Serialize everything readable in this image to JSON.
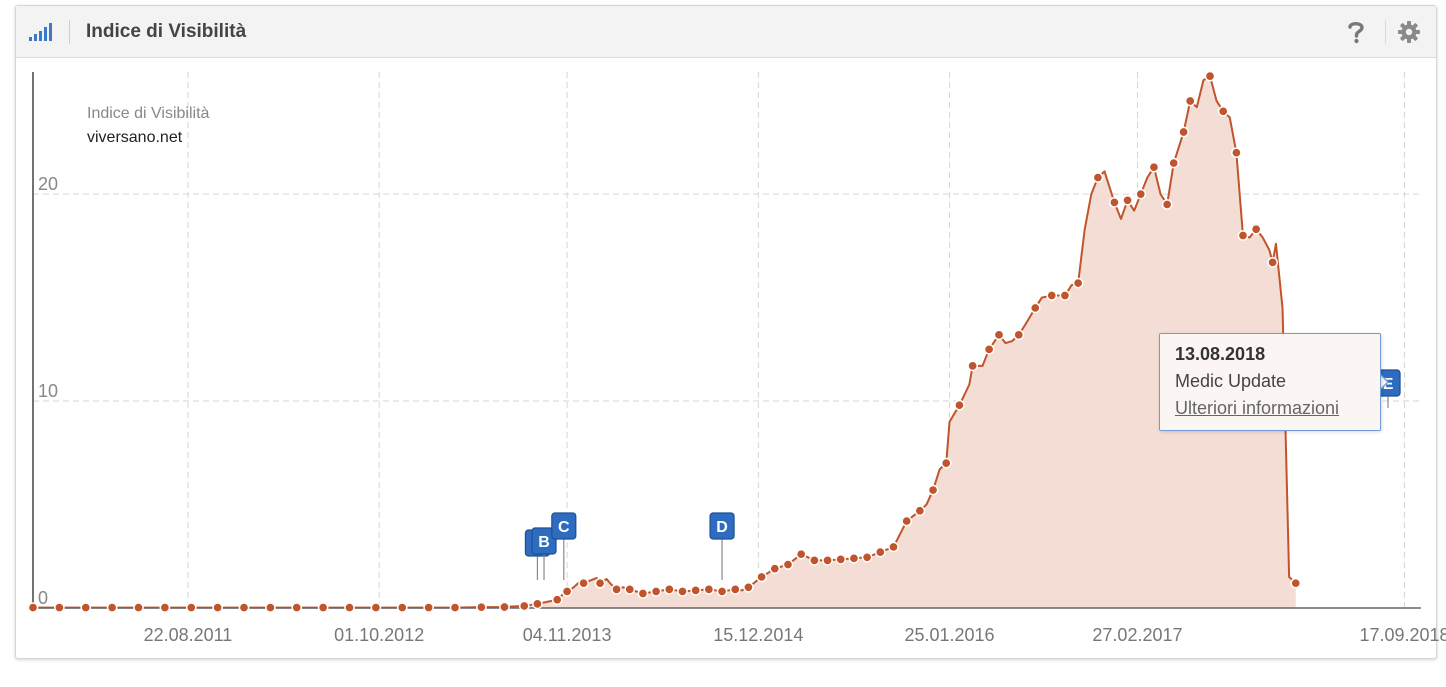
{
  "header": {
    "title": "Indice di Visibilità",
    "icon": "signal-bars-icon",
    "help_icon": "question-mark-icon",
    "settings_icon": "gear-icon",
    "accent": "#3a78c9"
  },
  "tooltip": {
    "date": "13.08.2018",
    "name": "Medic Update",
    "link": "Ulteriori informazioni"
  },
  "chart_data": {
    "type": "area",
    "legend_placement": "top-left",
    "legend": {
      "metric": "Indice di Visibilità",
      "domain": "viversano.net"
    },
    "ylim": [
      0,
      25.9
    ],
    "yticks": [
      0,
      10,
      20
    ],
    "xlim": [
      "2010-09-27",
      "2018-10-22"
    ],
    "xticks": [
      "22.08.2011",
      "01.10.2012",
      "04.11.2013",
      "15.12.2014",
      "25.01.2016",
      "27.02.2017",
      "17.09.2018"
    ],
    "grid": true,
    "colors": {
      "line": "#c0552d",
      "fill": "#f3ddd4",
      "grid": "#d6d6d6",
      "marker": "#2e6cbf"
    },
    "series": [
      {
        "points": [
          [
            "2010-09-27",
            0.02
          ],
          [
            "2010-11-22",
            0.02
          ],
          [
            "2011-01-17",
            0.02
          ],
          [
            "2011-03-14",
            0.02
          ],
          [
            "2011-05-09",
            0.02
          ],
          [
            "2011-07-04",
            0.02
          ],
          [
            "2011-08-29",
            0.02
          ],
          [
            "2011-10-24",
            0.02
          ],
          [
            "2011-12-19",
            0.02
          ],
          [
            "2012-02-13",
            0.02
          ],
          [
            "2012-04-09",
            0.02
          ],
          [
            "2012-06-04",
            0.02
          ],
          [
            "2012-07-30",
            0.02
          ],
          [
            "2012-09-24",
            0.02
          ],
          [
            "2012-11-19",
            0.02
          ],
          [
            "2013-01-14",
            0.02
          ],
          [
            "2013-03-11",
            0.02
          ],
          [
            "2013-05-06",
            0.04
          ],
          [
            "2013-06-24",
            0.05
          ],
          [
            "2013-08-05",
            0.1
          ],
          [
            "2013-09-02",
            0.2
          ],
          [
            "2013-10-14",
            0.4
          ],
          [
            "2013-10-28",
            0.7
          ],
          [
            "2013-11-04",
            0.8
          ],
          [
            "2013-11-18",
            1.0
          ],
          [
            "2013-12-02",
            1.3
          ],
          [
            "2013-12-09",
            1.2
          ],
          [
            "2014-01-06",
            1.45
          ],
          [
            "2014-01-13",
            1.2
          ],
          [
            "2014-01-27",
            1.4
          ],
          [
            "2014-02-03",
            1.2
          ],
          [
            "2014-02-17",
            0.9
          ],
          [
            "2014-03-03",
            1.0
          ],
          [
            "2014-03-17",
            0.9
          ],
          [
            "2014-04-14",
            0.7
          ],
          [
            "2014-05-12",
            0.8
          ],
          [
            "2014-06-09",
            0.9
          ],
          [
            "2014-07-07",
            0.8
          ],
          [
            "2014-08-04",
            0.85
          ],
          [
            "2014-09-01",
            0.9
          ],
          [
            "2014-09-29",
            0.8
          ],
          [
            "2014-10-27",
            0.9
          ],
          [
            "2014-11-10",
            0.85
          ],
          [
            "2014-11-24",
            1.0
          ],
          [
            "2014-12-22",
            1.5
          ],
          [
            "2015-01-19",
            1.9
          ],
          [
            "2015-02-16",
            2.1
          ],
          [
            "2015-03-16",
            2.6
          ],
          [
            "2015-04-13",
            2.3
          ],
          [
            "2015-05-11",
            2.3
          ],
          [
            "2015-06-08",
            2.35
          ],
          [
            "2015-07-06",
            2.4
          ],
          [
            "2015-08-03",
            2.45
          ],
          [
            "2015-08-31",
            2.7
          ],
          [
            "2015-09-28",
            2.95
          ],
          [
            "2015-10-26",
            4.2
          ],
          [
            "2015-11-23",
            4.7
          ],
          [
            "2015-12-07",
            5.0
          ],
          [
            "2015-12-21",
            5.7
          ],
          [
            "2016-01-04",
            6.7
          ],
          [
            "2016-01-18",
            7.0
          ],
          [
            "2016-01-25",
            9.0
          ],
          [
            "2016-02-15",
            9.8
          ],
          [
            "2016-03-07",
            10.8
          ],
          [
            "2016-03-14",
            11.7
          ],
          [
            "2016-04-04",
            11.7
          ],
          [
            "2016-04-18",
            12.5
          ],
          [
            "2016-05-09",
            13.2
          ],
          [
            "2016-05-23",
            12.8
          ],
          [
            "2016-06-06",
            12.9
          ],
          [
            "2016-06-20",
            13.2
          ],
          [
            "2016-07-04",
            13.7
          ],
          [
            "2016-07-25",
            14.5
          ],
          [
            "2016-08-08",
            15.0
          ],
          [
            "2016-08-29",
            15.1
          ],
          [
            "2016-09-26",
            15.1
          ],
          [
            "2016-10-10",
            15.6
          ],
          [
            "2016-10-24",
            15.7
          ],
          [
            "2016-11-07",
            18.3
          ],
          [
            "2016-11-21",
            20.0
          ],
          [
            "2016-12-05",
            20.8
          ],
          [
            "2016-12-19",
            21.1
          ],
          [
            "2017-01-09",
            19.6
          ],
          [
            "2017-01-23",
            18.8
          ],
          [
            "2017-02-06",
            19.7
          ],
          [
            "2017-02-20",
            19.2
          ],
          [
            "2017-03-06",
            20.0
          ],
          [
            "2017-03-20",
            20.8
          ],
          [
            "2017-04-03",
            21.3
          ],
          [
            "2017-04-17",
            20.0
          ],
          [
            "2017-05-01",
            19.5
          ],
          [
            "2017-05-15",
            21.5
          ],
          [
            "2017-06-05",
            23.0
          ],
          [
            "2017-06-19",
            24.5
          ],
          [
            "2017-07-03",
            24.2
          ],
          [
            "2017-07-17",
            25.5
          ],
          [
            "2017-07-31",
            25.7
          ],
          [
            "2017-08-14",
            24.5
          ],
          [
            "2017-08-28",
            24.0
          ],
          [
            "2017-09-11",
            23.7
          ],
          [
            "2017-09-25",
            22.0
          ],
          [
            "2017-10-09",
            18.0
          ],
          [
            "2017-10-23",
            17.9
          ],
          [
            "2017-11-06",
            18.3
          ],
          [
            "2017-11-20",
            17.9
          ],
          [
            "2017-12-04",
            17.3
          ],
          [
            "2017-12-11",
            16.7
          ],
          [
            "2017-12-18",
            17.6
          ],
          [
            "2018-01-01",
            14.5
          ],
          [
            "2018-01-15",
            1.5
          ],
          [
            "2018-01-29",
            1.2
          ]
        ],
        "dotted": [
          "2010-09-27",
          "2010-11-22",
          "2011-01-17",
          "2011-03-14",
          "2011-05-09",
          "2011-07-04",
          "2011-08-29",
          "2011-10-24",
          "2011-12-19",
          "2012-02-13",
          "2012-04-09",
          "2012-06-04",
          "2012-07-30",
          "2012-09-24",
          "2012-11-19",
          "2013-01-14",
          "2013-03-11",
          "2013-05-06",
          "2013-06-24",
          "2013-08-05",
          "2013-09-02",
          "2013-10-14",
          "2013-11-04",
          "2013-12-09",
          "2014-01-13",
          "2014-02-17",
          "2014-03-17",
          "2014-04-14",
          "2014-05-12",
          "2014-06-09",
          "2014-07-07",
          "2014-08-04",
          "2014-09-01",
          "2014-09-29",
          "2014-10-27",
          "2014-11-24",
          "2014-12-22",
          "2015-01-19",
          "2015-02-16",
          "2015-03-16",
          "2015-04-13",
          "2015-05-11",
          "2015-06-08",
          "2015-07-06",
          "2015-08-03",
          "2015-08-31",
          "2015-09-28",
          "2015-10-26",
          "2015-11-23",
          "2015-12-21",
          "2016-01-18",
          "2016-02-15",
          "2016-03-14",
          "2016-04-18",
          "2016-05-09",
          "2016-06-20",
          "2016-07-25",
          "2016-08-29",
          "2016-09-26",
          "2016-10-24",
          "2016-12-05",
          "2017-01-09",
          "2017-02-06",
          "2017-03-06",
          "2017-04-03",
          "2017-05-01",
          "2017-05-15",
          "2017-06-05",
          "2017-06-19",
          "2017-07-31",
          "2017-08-28",
          "2017-09-25",
          "2017-10-09",
          "2017-11-06",
          "2017-12-11",
          "2018-01-29"
        ]
      }
    ],
    "events": [
      {
        "label": "A",
        "date": "2013-09-02"
      },
      {
        "label": "B",
        "date": "2013-09-16"
      },
      {
        "label": "C",
        "date": "2013-10-28"
      },
      {
        "label": "D",
        "date": "2014-09-29"
      },
      {
        "label": "E",
        "date": "2018-08-13"
      }
    ]
  }
}
